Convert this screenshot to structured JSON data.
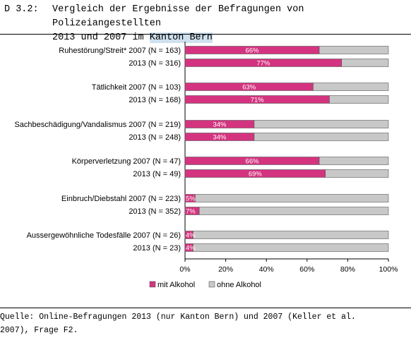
{
  "header": {
    "number": "D 3.2:",
    "title_line1": "Vergleich der Ergebnisse der Befragungen von Polizeiangestellten",
    "title_line2_pre": "2013 und 2007 im ",
    "title_line2_hl": "Kanton Bern"
  },
  "footer": {
    "source_line1": "Quelle: Online-Befragungen 2013 (nur Kanton Bern) und 2007 (Keller et al.",
    "source_line2": "2007), Frage F2."
  },
  "colors": {
    "mit": "#d4337f",
    "ohne": "#c8c8c8",
    "bar_outline": "#555555"
  },
  "chart_data": {
    "type": "bar",
    "orientation": "horizontal",
    "stacked": true,
    "xlim": [
      0,
      100
    ],
    "xticks": [
      "0%",
      "20%",
      "40%",
      "60%",
      "80%",
      "100%"
    ],
    "legend_position": "bottom",
    "series": [
      {
        "name": "mit Alkohol",
        "values": [
          66,
          77,
          63,
          71,
          34,
          34,
          66,
          69,
          5,
          7,
          4,
          4
        ]
      },
      {
        "name": "ohne Alkohol",
        "values": [
          34,
          23,
          37,
          29,
          66,
          66,
          34,
          31,
          95,
          93,
          96,
          96
        ]
      }
    ],
    "data_labels": [
      "66%",
      "77%",
      "63%",
      "71%",
      "34%",
      "34%",
      "66%",
      "69%",
      "5%",
      "7%",
      "4%",
      "4%"
    ],
    "categories": [
      "Ruhestörung/Streit* 2007 (N = 163)",
      "2013 (N = 316)",
      "Tätlichkeit 2007 (N = 103)",
      "2013 (N = 168)",
      "Sachbeschädigung/Vandalismus 2007 (N = 219)",
      "2013 (N = 248)",
      "Körperverletzung 2007 (N = 47)",
      "2013 (N = 49)",
      "Einbruch/Diebstahl 2007 (N = 223)",
      "2013 (N = 352)",
      "Aussergewöhnliche Todesfälle 2007 (N = 26)",
      "2013 (N = 23)"
    ]
  }
}
